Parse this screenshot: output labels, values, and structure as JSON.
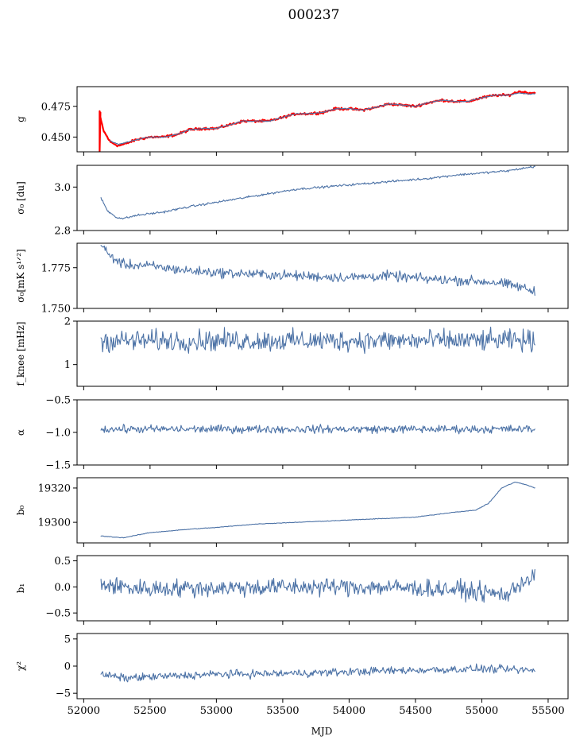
{
  "figure_title": "000237",
  "chart_data": {
    "type": "line",
    "title": "000237",
    "xlabel": "MJD",
    "xlim": [
      51950,
      55650
    ],
    "xticks": [
      52000,
      52500,
      53000,
      53500,
      54000,
      54500,
      55000,
      55500
    ],
    "x_start": 52120,
    "x_end": 55400,
    "colors": {
      "data": "#4c72a6",
      "model": "#ff0000"
    },
    "panels": [
      {
        "id": "g",
        "ylabel": "g",
        "ylim": [
          0.438,
          0.491
        ],
        "yticks": [
          0.45,
          0.475
        ],
        "yticklabels": [
          "0.450",
          "0.475"
        ],
        "series": [
          {
            "role": "model",
            "noise": 0.0008,
            "points": [
              [
                52120,
                0.468
              ],
              [
                52150,
                0.455
              ],
              [
                52200,
                0.446
              ],
              [
                52260,
                0.443
              ],
              [
                52300,
                0.444
              ],
              [
                52400,
                0.448
              ],
              [
                52500,
                0.45
              ],
              [
                52600,
                0.45
              ],
              [
                52700,
                0.452
              ],
              [
                52800,
                0.456
              ],
              [
                52900,
                0.457
              ],
              [
                53000,
                0.457
              ],
              [
                53100,
                0.46
              ],
              [
                53200,
                0.463
              ],
              [
                53300,
                0.463
              ],
              [
                53400,
                0.463
              ],
              [
                53500,
                0.466
              ],
              [
                53600,
                0.469
              ],
              [
                53700,
                0.469
              ],
              [
                53800,
                0.47
              ],
              [
                53900,
                0.473
              ],
              [
                54000,
                0.473
              ],
              [
                54100,
                0.472
              ],
              [
                54200,
                0.474
              ],
              [
                54300,
                0.477
              ],
              [
                54400,
                0.476
              ],
              [
                54500,
                0.475
              ],
              [
                54600,
                0.478
              ],
              [
                54700,
                0.48
              ],
              [
                54800,
                0.479
              ],
              [
                54900,
                0.479
              ],
              [
                55000,
                0.482
              ],
              [
                55100,
                0.484
              ],
              [
                55200,
                0.484
              ],
              [
                55280,
                0.487
              ],
              [
                55350,
                0.486
              ],
              [
                55400,
                0.486
              ]
            ]
          },
          {
            "role": "data",
            "noise": 0.0003,
            "points": [
              [
                52200,
                0.447
              ],
              [
                52260,
                0.444
              ],
              [
                52300,
                0.445
              ],
              [
                52400,
                0.448
              ],
              [
                52500,
                0.45
              ],
              [
                52600,
                0.45
              ],
              [
                52700,
                0.452
              ],
              [
                52800,
                0.456
              ],
              [
                52900,
                0.457
              ],
              [
                53000,
                0.457
              ],
              [
                53100,
                0.46
              ],
              [
                53200,
                0.463
              ],
              [
                53300,
                0.463
              ],
              [
                53400,
                0.463
              ],
              [
                53500,
                0.466
              ],
              [
                53600,
                0.469
              ],
              [
                53700,
                0.469
              ],
              [
                53800,
                0.47
              ],
              [
                53900,
                0.473
              ],
              [
                54000,
                0.473
              ],
              [
                54100,
                0.472
              ],
              [
                54200,
                0.474
              ],
              [
                54300,
                0.477
              ],
              [
                54400,
                0.476
              ],
              [
                54500,
                0.475
              ],
              [
                54600,
                0.478
              ],
              [
                54700,
                0.48
              ],
              [
                54800,
                0.479
              ],
              [
                54900,
                0.479
              ],
              [
                55000,
                0.482
              ],
              [
                55100,
                0.484
              ],
              [
                55200,
                0.484
              ],
              [
                55280,
                0.486
              ],
              [
                55350,
                0.485
              ],
              [
                55400,
                0.485
              ]
            ]
          }
        ]
      },
      {
        "id": "sigma0-du",
        "ylabel": "σ₀ [du]",
        "ylim": [
          2.8,
          3.1
        ],
        "yticks": [
          2.8,
          3.0
        ],
        "yticklabels": [
          "2.8",
          "3.0"
        ],
        "series": [
          {
            "role": "data",
            "noise": 0.004,
            "points": [
              [
                52130,
                2.95
              ],
              [
                52180,
                2.89
              ],
              [
                52250,
                2.86
              ],
              [
                52300,
                2.855
              ],
              [
                52400,
                2.87
              ],
              [
                52600,
                2.885
              ],
              [
                52800,
                2.91
              ],
              [
                53000,
                2.93
              ],
              [
                53200,
                2.95
              ],
              [
                53400,
                2.97
              ],
              [
                53600,
                2.99
              ],
              [
                53800,
                3.0
              ],
              [
                54000,
                3.01
              ],
              [
                54200,
                3.02
              ],
              [
                54400,
                3.03
              ],
              [
                54600,
                3.04
              ],
              [
                54800,
                3.055
              ],
              [
                55000,
                3.065
              ],
              [
                55200,
                3.075
              ],
              [
                55300,
                3.085
              ],
              [
                55400,
                3.095
              ]
            ]
          }
        ]
      },
      {
        "id": "sigma0-mks",
        "ylabel": "σ₀[mK s¹ᐟ²]",
        "ylim": [
          1.75,
          1.79
        ],
        "yticks": [
          1.75,
          1.775
        ],
        "yticklabels": [
          "1.750",
          "1.775"
        ],
        "series": [
          {
            "role": "data",
            "noise": 0.0025,
            "points": [
              [
                52130,
                1.789
              ],
              [
                52200,
                1.782
              ],
              [
                52300,
                1.777
              ],
              [
                52500,
                1.776
              ],
              [
                52800,
                1.773
              ],
              [
                53000,
                1.772
              ],
              [
                53300,
                1.771
              ],
              [
                53600,
                1.77
              ],
              [
                54000,
                1.769
              ],
              [
                54300,
                1.77
              ],
              [
                54600,
                1.768
              ],
              [
                54900,
                1.767
              ],
              [
                55100,
                1.766
              ],
              [
                55300,
                1.763
              ],
              [
                55400,
                1.76
              ]
            ]
          }
        ]
      },
      {
        "id": "fknee",
        "ylabel": "f_knee [mHz]",
        "ylim": [
          0.5,
          2.0
        ],
        "yticks": [
          1,
          2
        ],
        "yticklabels": [
          "1",
          "2"
        ],
        "series": [
          {
            "role": "data",
            "noise": 0.2,
            "points": [
              [
                52130,
                1.55
              ],
              [
                55400,
                1.55
              ]
            ]
          }
        ]
      },
      {
        "id": "alpha",
        "ylabel": "α",
        "ylim": [
          -1.5,
          -0.5
        ],
        "yticks": [
          -1.5,
          -1.0,
          -0.5
        ],
        "yticklabels": [
          "−1.5",
          "−1.0",
          "−0.5"
        ],
        "series": [
          {
            "role": "data",
            "noise": 0.05,
            "points": [
              [
                52130,
                -0.95
              ],
              [
                55400,
                -0.95
              ]
            ]
          }
        ]
      },
      {
        "id": "b0",
        "ylabel": "b₀",
        "ylim": [
          19288,
          19326
        ],
        "yticks": [
          19300,
          19320
        ],
        "yticklabels": [
          "19300",
          "19320"
        ],
        "series": [
          {
            "role": "data",
            "noise": 0.15,
            "points": [
              [
                52130,
                19292
              ],
              [
                52300,
                19291
              ],
              [
                52500,
                19294
              ],
              [
                52800,
                19296
              ],
              [
                53000,
                19297
              ],
              [
                53300,
                19299
              ],
              [
                53600,
                19300
              ],
              [
                53900,
                19301
              ],
              [
                54200,
                19302
              ],
              [
                54500,
                19303
              ],
              [
                54800,
                19306
              ],
              [
                54950,
                19307
              ],
              [
                55050,
                19311
              ],
              [
                55150,
                19320
              ],
              [
                55250,
                19323.5
              ],
              [
                55330,
                19322
              ],
              [
                55400,
                19320
              ]
            ]
          }
        ]
      },
      {
        "id": "b1",
        "ylabel": "b₁",
        "ylim": [
          -0.65,
          0.6
        ],
        "yticks": [
          -0.5,
          0.0,
          0.5
        ],
        "yticklabels": [
          "−0.5",
          "0.0",
          "0.5"
        ],
        "series": [
          {
            "role": "data",
            "noise": 0.14,
            "points": [
              [
                52130,
                0.05
              ],
              [
                52400,
                -0.03
              ],
              [
                53000,
                -0.02
              ],
              [
                53600,
                0.0
              ],
              [
                54200,
                0.0
              ],
              [
                54800,
                -0.05
              ],
              [
                55050,
                -0.12
              ],
              [
                55200,
                -0.15
              ],
              [
                55300,
                0.1
              ],
              [
                55400,
                0.2
              ]
            ]
          }
        ]
      },
      {
        "id": "chi2",
        "ylabel": "χ²",
        "ylim": [
          -6,
          6
        ],
        "yticks": [
          -5,
          0,
          5
        ],
        "yticklabels": [
          "−5",
          "0",
          "5"
        ],
        "series": [
          {
            "role": "data",
            "noise": 0.6,
            "points": [
              [
                52130,
                -1.5
              ],
              [
                52300,
                -2.2
              ],
              [
                52600,
                -1.9
              ],
              [
                53000,
                -1.5
              ],
              [
                53400,
                -1.4
              ],
              [
                53800,
                -1.2
              ],
              [
                54200,
                -0.9
              ],
              [
                54600,
                -0.7
              ],
              [
                55000,
                -0.5
              ],
              [
                55400,
                -0.8
              ]
            ]
          }
        ]
      }
    ]
  }
}
